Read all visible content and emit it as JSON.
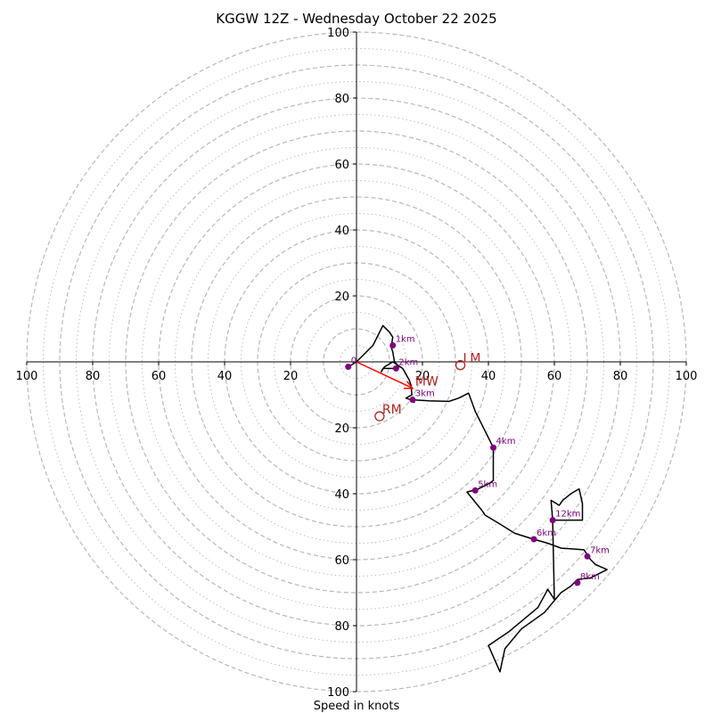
{
  "chart_data": {
    "type": "hodograph",
    "title": "KGGW 12Z - Wednesday October 22 2025",
    "xlabel": "Speed in knots",
    "xlim": [
      -100,
      100
    ],
    "ylim": [
      -100,
      100
    ],
    "xticks": [
      -100,
      -80,
      -60,
      -40,
      -20,
      20,
      40,
      60,
      80,
      100
    ],
    "yticks": [
      -100,
      -80,
      -60,
      -40,
      -20,
      20,
      40,
      60,
      80,
      100
    ],
    "tick_labels": [
      "100",
      "80",
      "60",
      "40",
      "20",
      "20",
      "40",
      "60",
      "80",
      "100"
    ],
    "rings_dashed": [
      10,
      20,
      30,
      40,
      50,
      60,
      70,
      80,
      90,
      100
    ],
    "rings_dotted": [
      5,
      15,
      25,
      35,
      45,
      55,
      65,
      75,
      85,
      95
    ],
    "trace": [
      [
        -2.5,
        -1.5
      ],
      [
        0,
        0
      ],
      [
        5,
        5
      ],
      [
        8,
        11
      ],
      [
        10,
        9
      ],
      [
        11,
        7.5
      ],
      [
        10.5,
        4.5
      ],
      [
        11,
        3
      ],
      [
        11.5,
        0
      ],
      [
        13,
        -1.5
      ],
      [
        11.5,
        -2
      ],
      [
        8,
        -2
      ],
      [
        7.5,
        -3
      ],
      [
        8.5,
        -1.5
      ],
      [
        11,
        0
      ],
      [
        14,
        -2
      ],
      [
        16,
        -5.5
      ],
      [
        16.5,
        -7
      ],
      [
        16.8,
        -10
      ],
      [
        15,
        -11
      ],
      [
        16.5,
        -11.5
      ],
      [
        17.5,
        -12.3
      ],
      [
        17,
        -11.5
      ],
      [
        22,
        -11.8
      ],
      [
        28,
        -12
      ],
      [
        31,
        -11
      ],
      [
        34,
        -9.5
      ],
      [
        36,
        -15
      ],
      [
        39,
        -21
      ],
      [
        41.5,
        -26
      ],
      [
        41.5,
        -31
      ],
      [
        41.5,
        -36
      ],
      [
        40,
        -37
      ],
      [
        37,
        -38.5
      ],
      [
        33.5,
        -39.5
      ],
      [
        38,
        -45
      ],
      [
        39,
        -46.5
      ],
      [
        44,
        -49.5
      ],
      [
        48,
        -52
      ],
      [
        53.8,
        -53.8
      ],
      [
        58,
        -55
      ],
      [
        62,
        -56.5
      ],
      [
        69,
        -57
      ],
      [
        70,
        -58.5
      ],
      [
        71,
        -60
      ],
      [
        72.5,
        -61.5
      ],
      [
        76,
        -63
      ],
      [
        73,
        -64.5
      ],
      [
        71,
        -65.5
      ],
      [
        67,
        -66
      ],
      [
        65,
        -68
      ],
      [
        62,
        -70
      ],
      [
        57,
        -76
      ],
      [
        50,
        -81
      ],
      [
        45,
        -87
      ],
      [
        43.5,
        -94
      ],
      [
        40,
        -86
      ],
      [
        46,
        -82
      ],
      [
        55,
        -74.5
      ],
      [
        58,
        -69
      ],
      [
        60,
        -72
      ],
      [
        59.5,
        -48
      ],
      [
        59,
        -42
      ],
      [
        61.5,
        -43.5
      ],
      [
        62.5,
        -42
      ],
      [
        65,
        -40
      ],
      [
        67.5,
        -38.5
      ],
      [
        68.5,
        -43
      ],
      [
        68.5,
        -48
      ],
      [
        60,
        -48
      ]
    ],
    "height_markers": [
      {
        "label": "0",
        "u": -2.5,
        "v": -1.5
      },
      {
        "label": "1km",
        "u": 11,
        "v": 5
      },
      {
        "label": "2km",
        "u": 12,
        "v": -2
      },
      {
        "label": "3km",
        "u": 17,
        "v": -11.5
      },
      {
        "label": "4km",
        "u": 41.5,
        "v": -26
      },
      {
        "label": "5km",
        "u": 36,
        "v": -39
      },
      {
        "label": "6km",
        "u": 53.8,
        "v": -53.8
      },
      {
        "label": "7km",
        "u": 70,
        "v": -59
      },
      {
        "label": "8km",
        "u": 67,
        "v": -67
      },
      {
        "label": "12km",
        "u": 59.5,
        "v": -48
      }
    ],
    "storm_motion": [
      {
        "label": "LM",
        "u": 31.5,
        "v": -1
      },
      {
        "label": "RM",
        "u": 7,
        "v": -16.5
      },
      {
        "label": "MW",
        "u": 17,
        "v": -8
      }
    ],
    "storm_vector": {
      "from": [
        0,
        0
      ],
      "to": [
        17,
        -8
      ]
    },
    "colors": {
      "trace": "#000000",
      "markers": "#800080",
      "storm_labels": "#b22222",
      "vector": "#ff0000",
      "grid": "#b8b8b8"
    }
  }
}
